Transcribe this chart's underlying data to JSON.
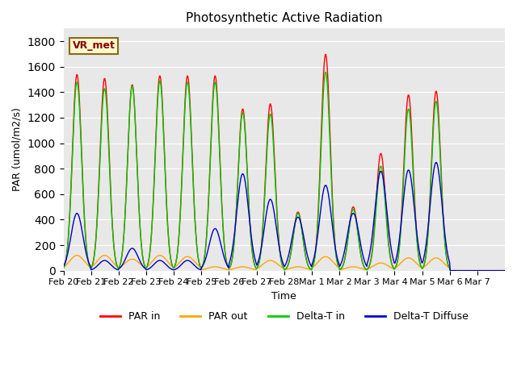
{
  "title": "Photosynthetic Active Radiation",
  "xlabel": "Time",
  "ylabel": "PAR (umol/m2/s)",
  "legend_label": "VR_met",
  "ylim": [
    0,
    1900
  ],
  "yticks": [
    0,
    200,
    400,
    600,
    800,
    1000,
    1200,
    1400,
    1600,
    1800
  ],
  "xtick_labels": [
    "Feb 20",
    "Feb 21",
    "Feb 22",
    "Feb 23",
    "Feb 24",
    "Feb 25",
    "Feb 26",
    "Feb 27",
    "Feb 28",
    "Mar 1",
    "Mar 2",
    "Mar 3",
    "Mar 4",
    "Mar 5",
    "Mar 6",
    "Mar 7"
  ],
  "colors": {
    "PAR_in": "#ff0000",
    "PAR_out": "#ffa500",
    "Delta_T_in": "#00cc00",
    "Delta_T_Diffuse": "#0000cc"
  },
  "background_color": "#e8e8e8",
  "fig_background": "#ffffff",
  "day_peaks": {
    "PAR_in": [
      1540,
      1510,
      1460,
      1530,
      1530,
      1530,
      1270,
      1310,
      460,
      1700,
      500,
      920,
      1380,
      1410,
      0
    ],
    "PAR_out": [
      120,
      120,
      90,
      120,
      110,
      30,
      30,
      80,
      30,
      110,
      30,
      60,
      100,
      100,
      0
    ],
    "Delta_T_in": [
      1480,
      1430,
      1450,
      1490,
      1480,
      1480,
      1240,
      1230,
      450,
      1560,
      480,
      820,
      1270,
      1330,
      0
    ],
    "Delta_T_Diffuse": [
      450,
      80,
      175,
      80,
      80,
      330,
      760,
      560,
      420,
      670,
      450,
      780,
      790,
      850,
      0
    ]
  },
  "n_days": 16,
  "pts_per_day": 48
}
